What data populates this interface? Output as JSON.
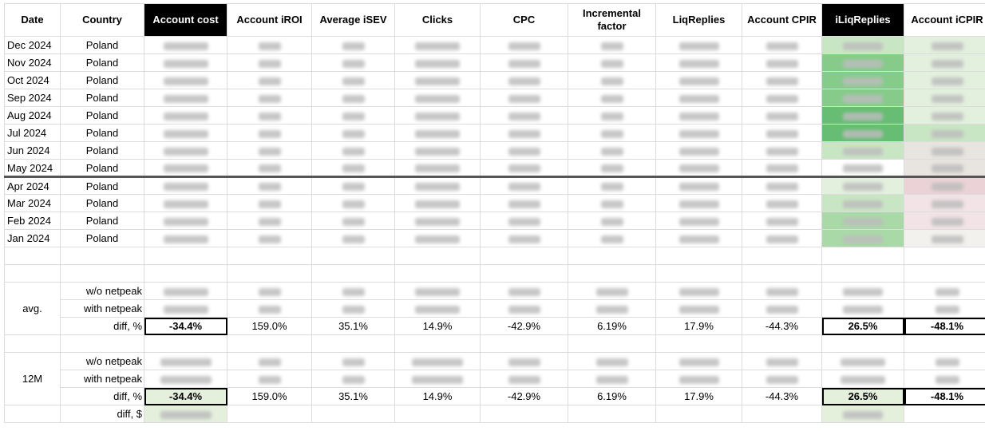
{
  "headers": [
    "Date",
    "Country",
    "Account cost",
    "Account iROI",
    "Average iSEV",
    "Clicks",
    "CPC",
    "Incremental factor",
    "LiqReplies",
    "Account CPIR",
    "iLiqReplies",
    "Account iCPIR"
  ],
  "monthly_rows": [
    {
      "date": "Dec 2024",
      "country": "Poland"
    },
    {
      "date": "Nov 2024",
      "country": "Poland"
    },
    {
      "date": "Oct 2024",
      "country": "Poland"
    },
    {
      "date": "Sep 2024",
      "country": "Poland"
    },
    {
      "date": "Aug 2024",
      "country": "Poland"
    },
    {
      "date": "Jul 2024",
      "country": "Poland"
    },
    {
      "date": "Jun 2024",
      "country": "Poland"
    },
    {
      "date": "May 2024",
      "country": "Poland"
    },
    {
      "date": "Apr 2024",
      "country": "Poland"
    },
    {
      "date": "Mar 2024",
      "country": "Poland"
    },
    {
      "date": "Feb 2024",
      "country": "Poland"
    },
    {
      "date": "Jan 2024",
      "country": "Poland"
    }
  ],
  "avg": {
    "group_label": "avg.",
    "wo_label": "w/o netpeak",
    "with_label": "with netpeak",
    "diff_label": "diff, %",
    "diff": [
      "-34.4%",
      "159.0%",
      "35.1%",
      "14.9%",
      "-42.9%",
      "6.19%",
      "17.9%",
      "-44.3%",
      "26.5%",
      "-48.1%"
    ]
  },
  "m12": {
    "group_label": "12M",
    "wo_label": "w/o netpeak",
    "with_label": "with netpeak",
    "diff_label": "diff, %",
    "diff": [
      "-34.4%",
      "159.0%",
      "35.1%",
      "14.9%",
      "-42.9%",
      "6.19%",
      "17.9%",
      "-44.3%",
      "26.5%",
      "-48.1%"
    ],
    "diff_usd_label": "diff, $"
  }
}
